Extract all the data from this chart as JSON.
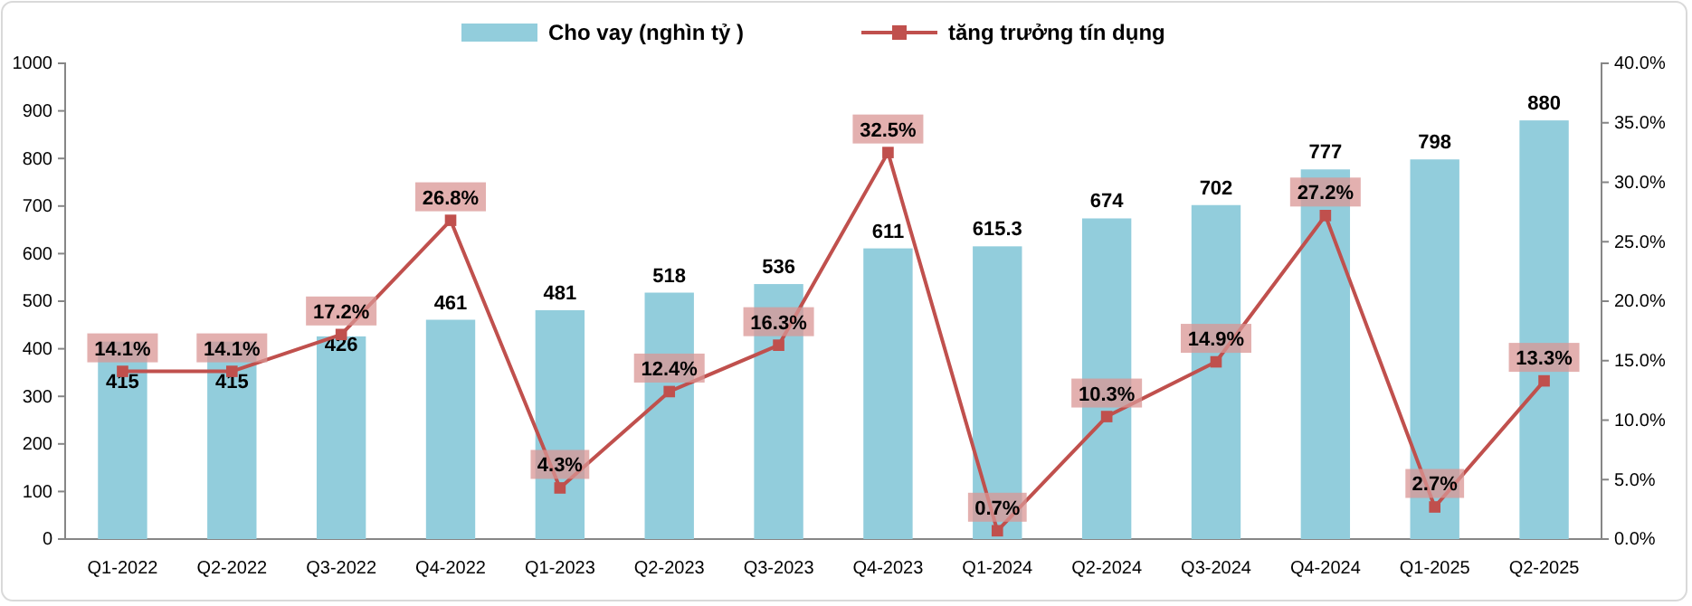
{
  "chart_data": {
    "type": "bar",
    "categories": [
      "Q1-2022",
      "Q2-2022",
      "Q3-2022",
      "Q4-2022",
      "Q1-2023",
      "Q2-2023",
      "Q3-2023",
      "Q4-2023",
      "Q1-2024",
      "Q2-2024",
      "Q3-2024",
      "Q4-2024",
      "Q1-2025",
      "Q2-2025"
    ],
    "series": [
      {
        "name": "Cho vay (nghìn tỷ )",
        "color": "#92cddc",
        "values": [
          415,
          415,
          426,
          461,
          481,
          518,
          536,
          611,
          615.3,
          674,
          702,
          777,
          798,
          880
        ],
        "value_labels": [
          "415",
          "415",
          "426",
          "461",
          "481",
          "518",
          "536",
          "611",
          "615.3",
          "674",
          "702",
          "777",
          "798",
          "880"
        ]
      },
      {
        "name": "tăng trưởng tín dụng",
        "type": "line",
        "axis": "y2",
        "color": "#c0504d",
        "marker": "square",
        "values": [
          14.1,
          14.1,
          17.2,
          26.8,
          4.3,
          12.4,
          16.3,
          32.5,
          0.7,
          10.3,
          14.9,
          27.2,
          2.7,
          13.3
        ],
        "value_labels": [
          "14.1%",
          "14.1%",
          "17.2%",
          "26.8%",
          "4.3%",
          "12.4%",
          "16.3%",
          "32.5%",
          "0.7%",
          "10.3%",
          "14.9%",
          "27.2%",
          "2.7%",
          "13.3%"
        ]
      }
    ],
    "ylim": [
      0,
      1000
    ],
    "yticks": [
      0,
      100,
      200,
      300,
      400,
      500,
      600,
      700,
      800,
      900,
      1000
    ],
    "y2lim": [
      0,
      40
    ],
    "y2ticks": [
      {
        "value": 0,
        "label": "0.0%"
      },
      {
        "value": 5,
        "label": "5.0%"
      },
      {
        "value": 10,
        "label": "10.0%"
      },
      {
        "value": 15,
        "label": "15.0%"
      },
      {
        "value": 20,
        "label": "20.0%"
      },
      {
        "value": 25,
        "label": "25.0%"
      },
      {
        "value": 30,
        "label": "30.0%"
      },
      {
        "value": 35,
        "label": "35.0%"
      },
      {
        "value": 40,
        "label": "40.0%"
      }
    ],
    "grid": false,
    "legend": "top"
  }
}
